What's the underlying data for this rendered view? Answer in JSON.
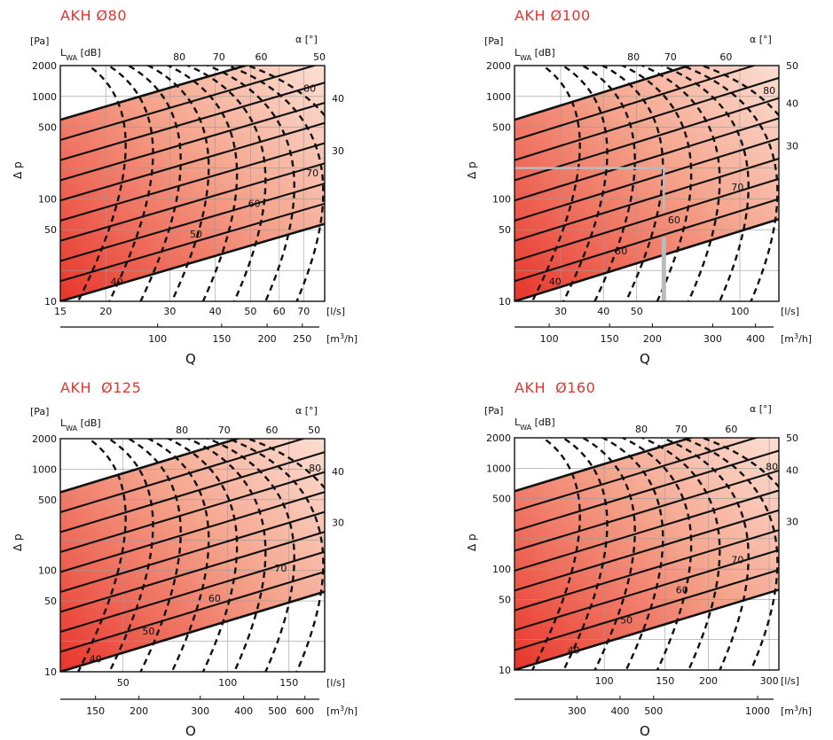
{
  "colors": {
    "accent": "#e3342f",
    "fill_dark": "#e8342a",
    "fill_light": "#fde6dc"
  },
  "labels": {
    "pa": "[Pa]",
    "lwa_main": "L",
    "lwa_sub": "WA",
    "lwa_unit": "[dB]",
    "alpha": "α [°]",
    "dp": "Δ p",
    "q": "Q",
    "ls": "[l/s]",
    "m3h_pre": "[m",
    "m3h_sup": "3",
    "m3h_post": "/h]"
  },
  "chart_data": [
    {
      "type": "line",
      "title": "AKH Ø80",
      "xlabel": "Q",
      "ylabel": "Δ p",
      "x_scale": "log",
      "y_scale": "log",
      "xlim_ls": [
        15,
        80
      ],
      "ylim_pa": [
        10,
        2000
      ],
      "x_ticks_ls": [
        15,
        20,
        30,
        40,
        50,
        60,
        70
      ],
      "x_ticks_m3h": [
        100,
        150,
        200,
        250
      ],
      "y_ticks_pa": [
        10,
        50,
        100,
        500,
        1000,
        2000
      ],
      "lwa_labels_db": [
        40,
        50,
        60,
        70,
        80
      ],
      "alpha_labels_deg": [
        80,
        70,
        60,
        50,
        40,
        30
      ],
      "region": "shaded band between the 10° and 90° damper-angle curves",
      "lwa_curve_count": 10,
      "alpha_curve_count": 9
    },
    {
      "type": "line",
      "title": "AKH Ø100",
      "xlabel": "Q",
      "ylabel": "Δ p",
      "x_scale": "log",
      "y_scale": "log",
      "xlim_ls": [
        22,
        130
      ],
      "ylim_pa": [
        10,
        2000
      ],
      "x_ticks_ls": [
        30,
        40,
        50,
        100
      ],
      "x_ticks_m3h": [
        100,
        150,
        200,
        300,
        400
      ],
      "y_ticks_pa": [
        10,
        50,
        100,
        500,
        1000,
        2000
      ],
      "lwa_labels_db": [
        40,
        50,
        60,
        70,
        80
      ],
      "alpha_labels_deg": [
        80,
        70,
        60,
        50,
        40,
        30
      ],
      "example_reading": {
        "q_ls": 60,
        "dp_pa": 200,
        "lwa_db": 60
      },
      "lwa_curve_count": 10,
      "alpha_curve_count": 9
    },
    {
      "type": "line",
      "title": "AKH  Ø125",
      "xlabel": "Q",
      "ylabel": "Δ p",
      "x_scale": "log",
      "y_scale": "log",
      "xlim_ls": [
        33,
        190
      ],
      "ylim_pa": [
        10,
        2000
      ],
      "x_ticks_ls": [
        50,
        100,
        150
      ],
      "x_ticks_m3h": [
        150,
        200,
        300,
        400,
        500,
        600
      ],
      "y_ticks_pa": [
        10,
        50,
        100,
        500,
        1000,
        2000
      ],
      "lwa_labels_db": [
        40,
        50,
        60,
        70,
        80
      ],
      "alpha_labels_deg": [
        80,
        70,
        60,
        50,
        40,
        30
      ],
      "lwa_curve_count": 10,
      "alpha_curve_count": 9
    },
    {
      "type": "line",
      "title": "AKH  Ø160",
      "xlabel": "Q",
      "ylabel": "Δ p",
      "x_scale": "log",
      "y_scale": "log",
      "xlim_ls": [
        55,
        320
      ],
      "ylim_pa": [
        10,
        2000
      ],
      "x_ticks_ls": [
        100,
        150,
        200,
        300
      ],
      "x_ticks_m3h": [
        300,
        400,
        500,
        1000
      ],
      "y_ticks_pa": [
        10,
        50,
        100,
        500,
        1000,
        2000
      ],
      "lwa_labels_db": [
        40,
        50,
        60,
        70,
        80
      ],
      "alpha_labels_deg": [
        80,
        70,
        60,
        50,
        40,
        30
      ],
      "lwa_curve_count": 10,
      "alpha_curve_count": 9
    }
  ]
}
